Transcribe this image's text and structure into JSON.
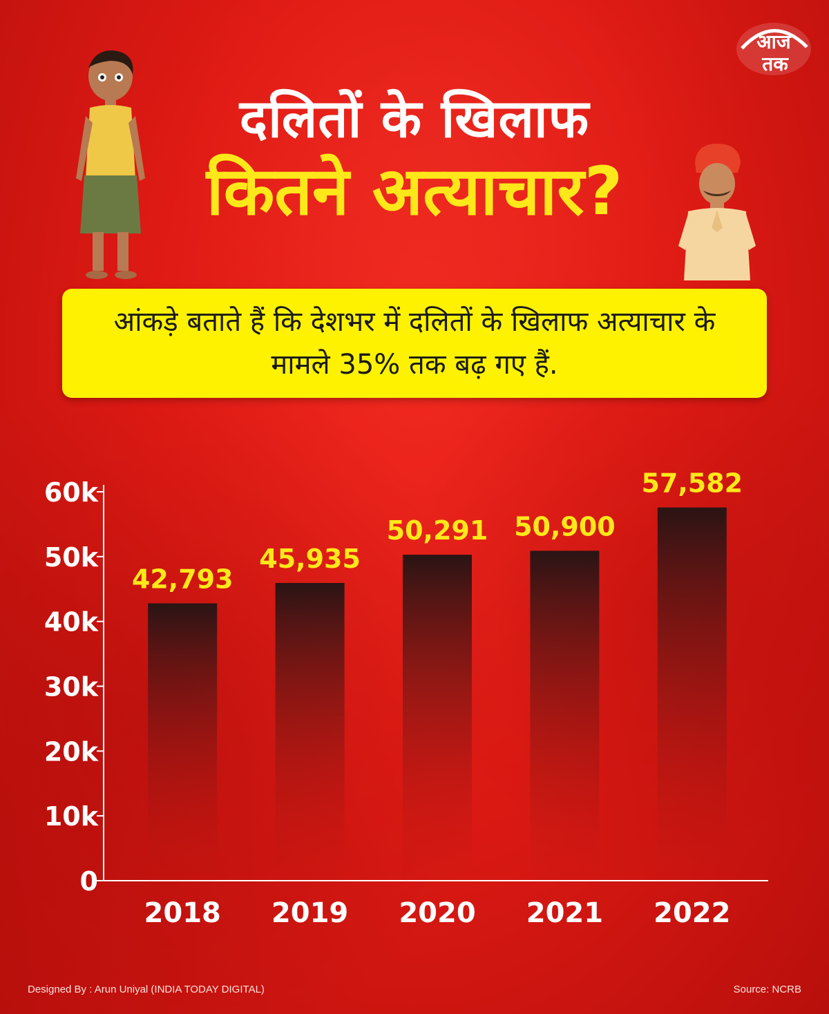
{
  "brand": {
    "logo_text_top": "आज",
    "logo_text_bottom": "तक",
    "colors": {
      "red": "#e01b14",
      "yellow": "#fff200",
      "white": "#ffffff"
    }
  },
  "header": {
    "title_line1": "दलितों के खिलाफ",
    "title_line2": "कितने अत्याचार?"
  },
  "subtitle": "आंकड़े बताते हैं कि देशभर में दलितों के खिलाफ अत्याचार के मामले 35% तक बढ़ गए हैं.",
  "chart_data": {
    "type": "bar",
    "categories": [
      "2018",
      "2019",
      "2020",
      "2021",
      "2022"
    ],
    "values": [
      42793,
      45935,
      50291,
      50900,
      57582
    ],
    "value_labels": [
      "42,793",
      "45,935",
      "50,291",
      "50,900",
      "57,582"
    ],
    "ylim": [
      0,
      60000
    ],
    "yticks": [
      0,
      10000,
      20000,
      30000,
      40000,
      50000,
      60000
    ],
    "ytick_labels": [
      "0",
      "10k",
      "20k",
      "30k",
      "40k",
      "50k",
      "60k"
    ],
    "title": "",
    "xlabel": "",
    "ylabel": "",
    "grid": false,
    "bar_color_top": "#2a1414",
    "bar_color_bottom": "#c41812",
    "value_label_color": "#ffe81a"
  },
  "footer": {
    "credit": "Designed By : Arun Uniyal (INDIA TODAY DIGITAL)",
    "source": "Source:  NCRB"
  }
}
